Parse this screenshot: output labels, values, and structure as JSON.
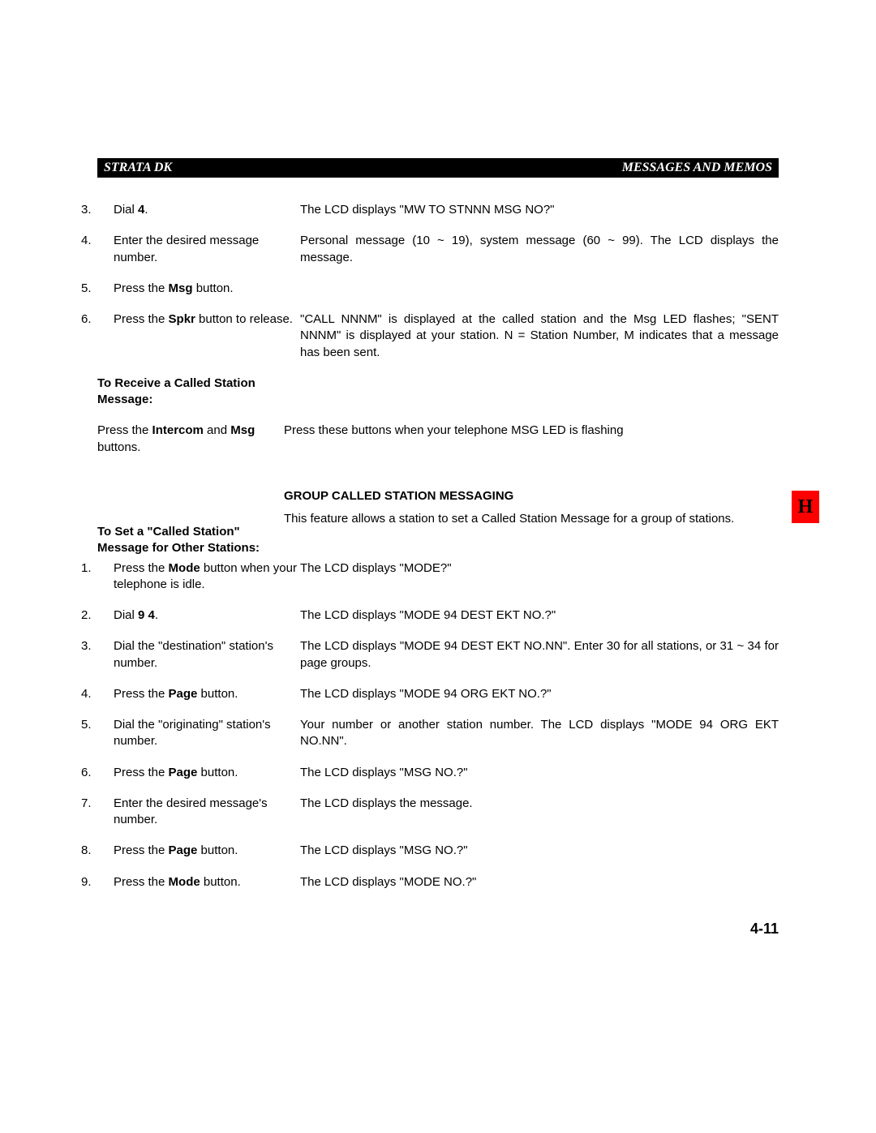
{
  "header": {
    "left": "STRATA DK",
    "right": "MESSAGES AND MEMOS"
  },
  "tab": "H",
  "pageNumber": "4-11",
  "section1": {
    "rows": [
      {
        "num": "3.",
        "left_a": "Dial ",
        "left_bold": "4",
        "left_b": ".",
        "right": "The LCD displays \"MW TO STNNN MSG NO?\""
      },
      {
        "num": "4.",
        "left_a": "Enter the desired message number.",
        "right": "Personal message (10 ~ 19), system message (60 ~ 99). The LCD displays the message."
      },
      {
        "num": "5.",
        "left_a": "Press the ",
        "left_bold": "Msg",
        "left_b": " button.",
        "right": ""
      },
      {
        "num": "6.",
        "left_a": "Press the ",
        "left_bold": "Spkr",
        "left_b": " button to release.",
        "right": "\"CALL NNNM\" is displayed at the called station and the Msg LED flashes; \"SENT NNNM\" is displayed at your station. N = Station Number, M indicates that a message has been sent."
      }
    ],
    "sub1_title": "To Receive a Called Station Message:",
    "sub1_left_a": "Press the ",
    "sub1_left_bold1": "Intercom",
    "sub1_left_mid": " and ",
    "sub1_left_bold2": "Msg",
    "sub1_left_b": " buttons.",
    "sub1_right": "Press these buttons when your telephone MSG LED is flashing"
  },
  "section2": {
    "title": "GROUP CALLED STATION MESSAGING",
    "intro": "This feature allows a station to set a Called Station Message for a group of stations.",
    "sub_title": "To Set a \"Called Station\" Message for Other Stations:",
    "rows": [
      {
        "num": "1.",
        "left_a": "Press the ",
        "left_bold": "Mode",
        "left_b": " button when your telephone is idle.",
        "right": "The LCD displays \"MODE?\""
      },
      {
        "num": "2.",
        "left_a": "Dial ",
        "left_bold": "9 4",
        "left_b": ".",
        "right": "The LCD displays \"MODE 94 DEST EKT NO.?\""
      },
      {
        "num": "3.",
        "left_a": "Dial the \"destination\" station's number.",
        "right": "The LCD displays \"MODE 94 DEST EKT NO.NN\". Enter 30 for all stations, or 31 ~ 34 for page groups."
      },
      {
        "num": "4.",
        "left_a": "Press the ",
        "left_bold": "Page",
        "left_b": " button.",
        "right": "The LCD displays \"MODE 94 ORG EKT NO.?\""
      },
      {
        "num": "5.",
        "left_a": "Dial the \"originating\" station's number.",
        "right": "Your number or another station number. The LCD displays \"MODE 94 ORG EKT NO.NN\"."
      },
      {
        "num": "6.",
        "left_a": "Press the ",
        "left_bold": "Page",
        "left_b": " button.",
        "right": "The LCD displays \"MSG NO.?\""
      },
      {
        "num": "7.",
        "left_a": "Enter the desired message's number.",
        "right": "The LCD displays the message."
      },
      {
        "num": "8.",
        "left_a": "Press the ",
        "left_bold": "Page",
        "left_b": " button.",
        "right": "The LCD displays \"MSG NO.?\""
      },
      {
        "num": "9.",
        "left_a": "Press the ",
        "left_bold": "Mode",
        "left_b": " button.",
        "right": "The LCD displays \"MODE NO.?\""
      }
    ]
  }
}
